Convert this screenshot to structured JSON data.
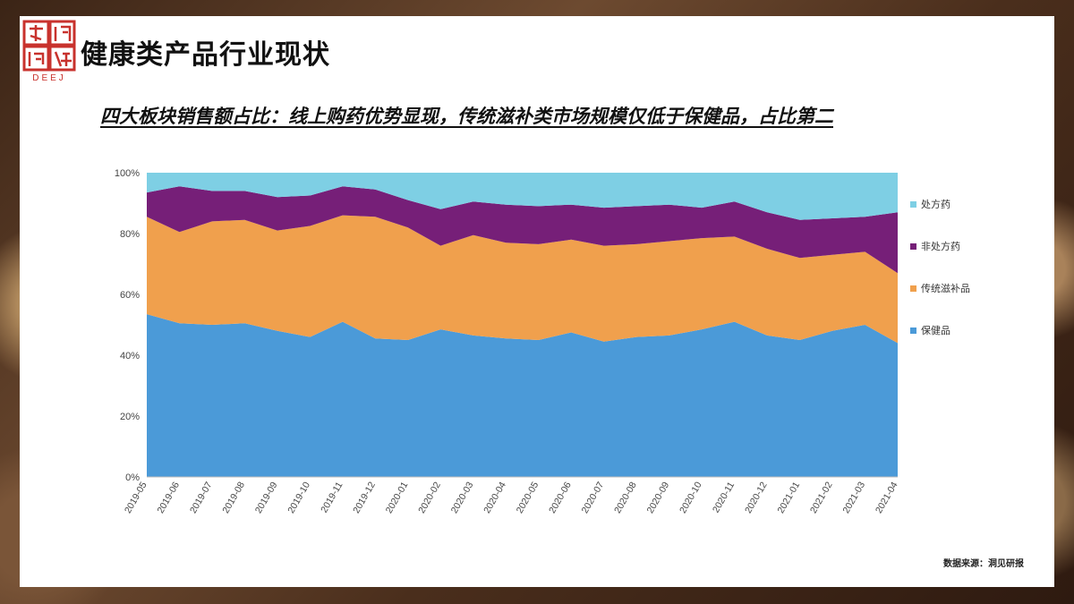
{
  "header": {
    "title": "健康类产品行业现状",
    "subtitle": "四大板块销售额占比：线上购药优势显现，传统滋补类市场规模仅低于保健品，占比第二",
    "logo_text": "DEEJ"
  },
  "footer": {
    "source": "数据来源：洞见研报"
  },
  "colors": {
    "prescription": "#7ecfe4",
    "otc": "#761f78",
    "tonic": "#f0a04d",
    "health": "#4b9ad8"
  },
  "chart_data": {
    "type": "area",
    "stacked": true,
    "percent": true,
    "title": "",
    "xlabel": "",
    "ylabel": "",
    "ylim": [
      0,
      100
    ],
    "yticks": [
      "0%",
      "20%",
      "40%",
      "60%",
      "80%",
      "100%"
    ],
    "x": [
      "2019-05",
      "2019-06",
      "2019-07",
      "2019-08",
      "2019-09",
      "2019-10",
      "2019-11",
      "2019-12",
      "2020-01",
      "2020-02",
      "2020-03",
      "2020-04",
      "2020-05",
      "2020-06",
      "2020-07",
      "2020-08",
      "2020-09",
      "2020-10",
      "2020-11",
      "2020-12",
      "2021-01",
      "2021-02",
      "2021-03",
      "2021-04"
    ],
    "series": [
      {
        "name": "保健品",
        "color_key": "health",
        "values": [
          53.5,
          50.5,
          50,
          50.5,
          48,
          46,
          51,
          45.5,
          45,
          48.5,
          46.5,
          45.5,
          45,
          47.5,
          44.5,
          46,
          46.5,
          48.5,
          51,
          46.5,
          45,
          48,
          50,
          44
        ]
      },
      {
        "name": "传统滋补品",
        "color_key": "tonic",
        "values": [
          32,
          30,
          34,
          34,
          33,
          36.5,
          35,
          40,
          37,
          27.5,
          33,
          31.5,
          31.5,
          30.5,
          31.5,
          30.5,
          31,
          30,
          28,
          28.5,
          27,
          25,
          24,
          23
        ]
      },
      {
        "name": "非处方药",
        "color_key": "otc",
        "values": [
          8,
          15,
          10,
          9.5,
          11,
          10,
          9.5,
          9,
          9,
          12,
          11,
          12.5,
          12.5,
          11.5,
          12.5,
          12.5,
          12,
          10,
          11.5,
          12,
          12.5,
          12,
          11.5,
          20
        ]
      },
      {
        "name": "处方药",
        "color_key": "prescription",
        "values": [
          6.5,
          4.5,
          6,
          6,
          8,
          7.5,
          4.5,
          5.5,
          9,
          12,
          9.5,
          10.5,
          11,
          10.5,
          11.5,
          11,
          10.5,
          11.5,
          9.5,
          13,
          15.5,
          15,
          14.5,
          13
        ]
      }
    ],
    "legend": {
      "position": "right",
      "order": [
        "处方药",
        "非处方药",
        "传统滋补品",
        "保健品"
      ]
    }
  }
}
